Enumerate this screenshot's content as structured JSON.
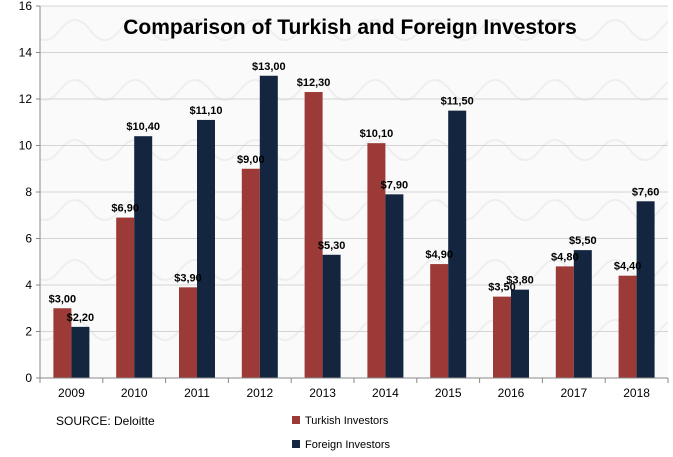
{
  "chart_data": {
    "type": "bar",
    "title": "Comparison of Turkish and Foreign Investors",
    "xlabel": "",
    "ylabel": "",
    "ylim": [
      0,
      16
    ],
    "yticks": [
      0,
      2,
      4,
      6,
      8,
      10,
      12,
      14,
      16
    ],
    "categories": [
      "2009",
      "2010",
      "2011",
      "2012",
      "2013",
      "2014",
      "2015",
      "2016",
      "2017",
      "2018"
    ],
    "series": [
      {
        "name": "Turkish Investors",
        "color": "#9b3a36",
        "values": [
          3.0,
          6.9,
          3.9,
          9.0,
          12.3,
          10.1,
          4.9,
          3.5,
          4.8,
          4.4
        ],
        "labels": [
          "$3,00",
          "$6,90",
          "$3,90",
          "$9,00",
          "$12,30",
          "$10,10",
          "$4,90",
          "$3,50",
          "$4,80",
          "$4,40"
        ]
      },
      {
        "name": "Foreign Investors",
        "color": "#13253f",
        "values": [
          2.2,
          10.4,
          11.1,
          13.0,
          5.3,
          7.9,
          11.5,
          3.8,
          5.5,
          7.6
        ],
        "labels": [
          "$2,20",
          "$10,40",
          "$11,10",
          "$13,00",
          "$5,30",
          "$7,90",
          "$11,50",
          "$3,80",
          "$5,50",
          "$7,60"
        ]
      }
    ],
    "grid": true,
    "legend_position": "bottom"
  },
  "source": "SOURCE: Deloitte"
}
